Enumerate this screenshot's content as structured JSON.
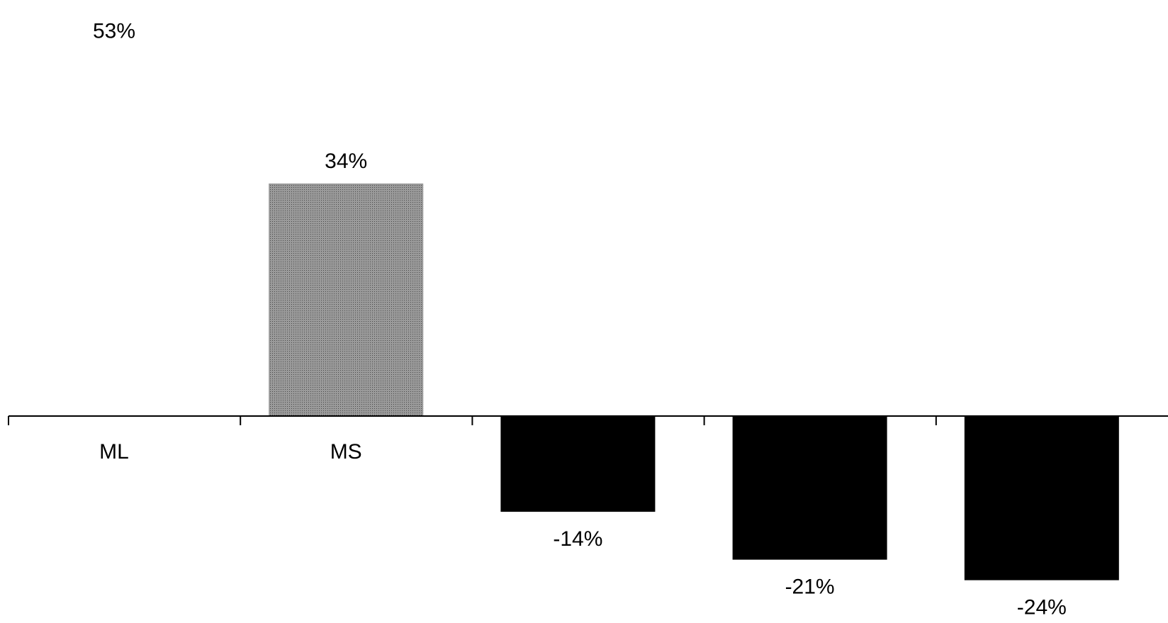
{
  "chart_data": {
    "type": "bar",
    "categories": [
      "ML",
      "MS",
      "",
      "",
      ""
    ],
    "values": [
      53,
      34,
      -14,
      -21,
      -24
    ],
    "value_labels": [
      "53%",
      "34%",
      "-14%",
      "-21%",
      "-24%"
    ],
    "ylim": [
      -25,
      60
    ],
    "grid": false,
    "colors": {
      "positive": "#8c8c8c",
      "negative": "#000000",
      "axis": "#000000"
    }
  }
}
